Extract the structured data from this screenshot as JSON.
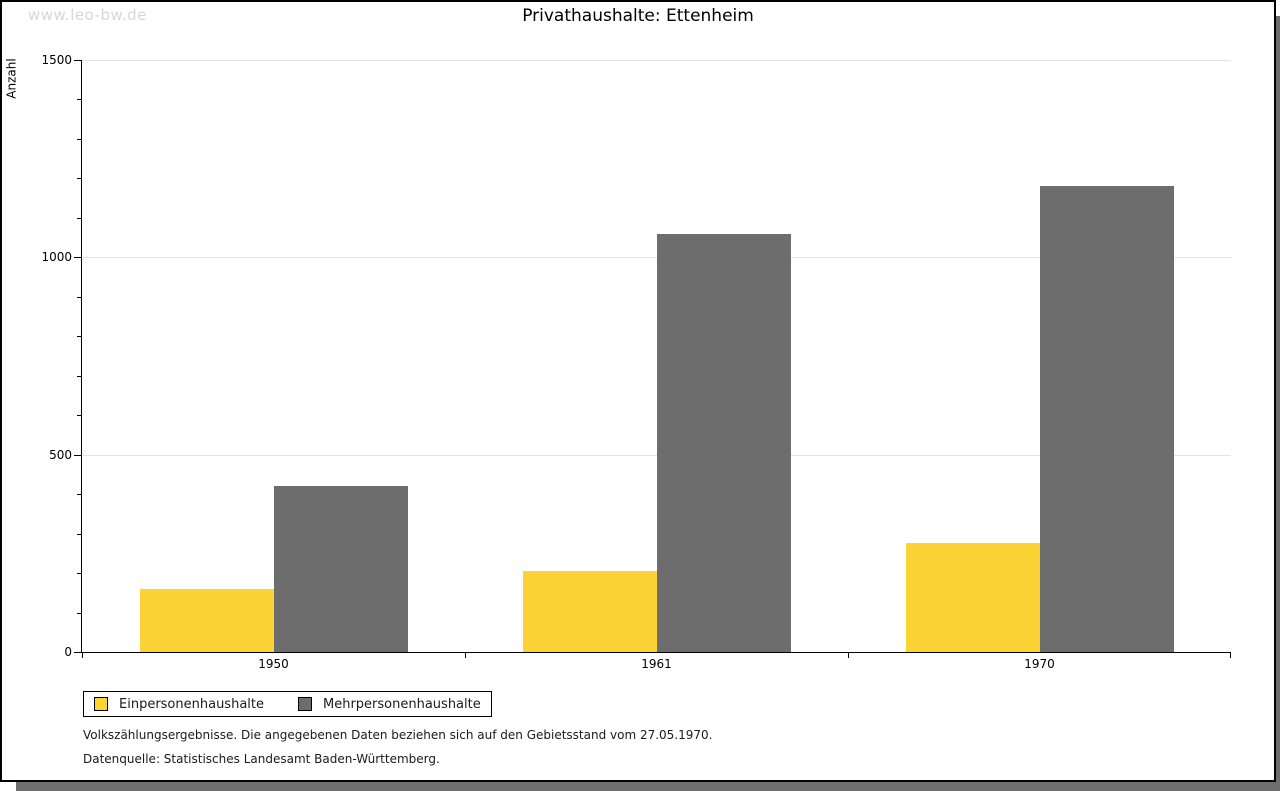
{
  "watermark": {
    "text": "www.leo-bw.de"
  },
  "header": {
    "title": "Privathaushalte: Ettenheim"
  },
  "chart_data": {
    "type": "bar",
    "title": "Privathaushalte: Ettenheim",
    "xlabel": "",
    "ylabel": "Anzahl",
    "ylim": [
      0,
      1500
    ],
    "yticks": [
      0,
      500,
      1000,
      1500
    ],
    "minor_tick_step": 100,
    "grid": "horizontal-major-gridlines",
    "legend_position": "bottom-left",
    "categories": [
      "1950",
      "1961",
      "1970"
    ],
    "series": [
      {
        "name": "Einpersonenhaushalte",
        "color": "#fcd335",
        "values": [
          160,
          205,
          275
        ]
      },
      {
        "name": "Mehrpersonenhaushalte",
        "color": "#6d6d6d",
        "values": [
          420,
          1060,
          1180
        ]
      }
    ]
  },
  "footnotes": {
    "line1": "Volkszählungsergebnisse. Die angegebenen Daten beziehen sich auf den Gebietsstand vom 27.05.1970.",
    "line2": "Datenquelle: Statistisches Landesamt Baden-Württemberg."
  },
  "colors": {
    "series_1": "#fcd335",
    "series_2": "#6d6d6d",
    "gridline": "#e4e4e4",
    "watermark_text": "#d7d7d7",
    "frame_shadow": "#6e6e6e",
    "axis": "#000000"
  }
}
